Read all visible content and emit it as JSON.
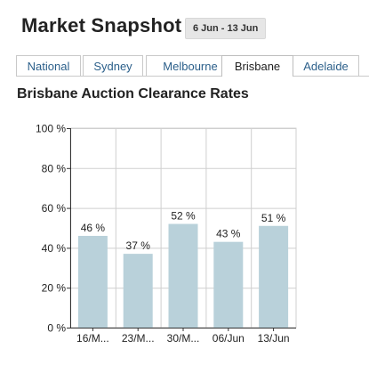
{
  "header": {
    "title": "Market Snapshot",
    "date_range": "6 Jun - 13 Jun"
  },
  "tabs": [
    {
      "label": "National",
      "active": false
    },
    {
      "label": "Sydney",
      "active": false
    },
    {
      "label": "Melbourne",
      "active": false
    },
    {
      "label": "Brisbane",
      "active": true
    },
    {
      "label": "Adelaide",
      "active": false
    }
  ],
  "subtitle": "Brisbane Auction Clearance Rates",
  "colors": {
    "bar": "#b9d1da",
    "grid": "#cfcfcf",
    "tab_link": "#2b5f8a"
  },
  "chart_data": {
    "type": "bar",
    "categories": [
      "16/M...",
      "23/M...",
      "30/M...",
      "06/Jun",
      "13/Jun"
    ],
    "values": [
      46,
      37,
      52,
      43,
      51
    ],
    "value_labels": [
      "46 %",
      "37 %",
      "52 %",
      "43 %",
      "51 %"
    ],
    "ylim": [
      0,
      100
    ],
    "yticks": [
      0,
      20,
      40,
      60,
      80,
      100
    ],
    "ytick_labels": [
      "0 %",
      "20 %",
      "40 %",
      "60 %",
      "80 %",
      "100 %"
    ],
    "grid": true,
    "title": "",
    "xlabel": "",
    "ylabel": ""
  }
}
